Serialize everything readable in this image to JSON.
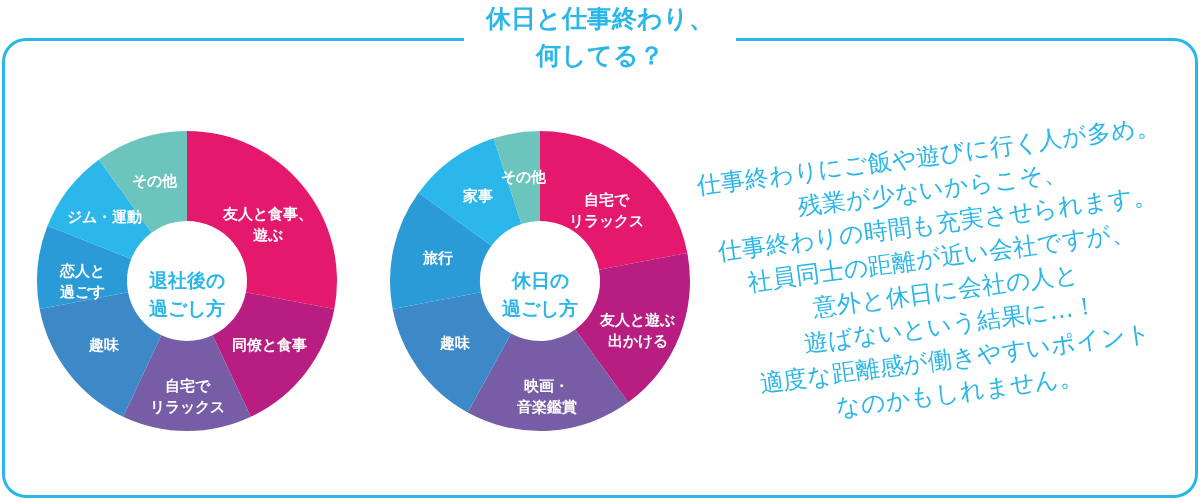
{
  "chart_data": [
    {
      "type": "other",
      "title": "休日と仕事終わり、何してる？"
    },
    {
      "type": "donut",
      "title": "退社後の過ごし方",
      "categories": [
        "友人と食事、遊ぶ",
        "同僚と食事",
        "自宅でリラックス",
        "趣味",
        "恋人と過ごす",
        "ジム・運動",
        "その他"
      ],
      "values": [
        28,
        15,
        14,
        15,
        9,
        9,
        10
      ],
      "colors": [
        "#e4186d",
        "#b81e82",
        "#765da5",
        "#3d89c8",
        "#2a9bd7",
        "#2bb7ea",
        "#6cc5bc"
      ]
    },
    {
      "type": "donut",
      "title": "休日の過ごし方",
      "categories": [
        "自宅でリラックス",
        "友人と遊ぶ出かける",
        "映画・音楽鑑賞",
        "趣味",
        "旅行",
        "家事",
        "その他"
      ],
      "values": [
        22,
        18,
        18,
        14,
        13,
        10,
        5
      ],
      "colors": [
        "#e4186d",
        "#b81e82",
        "#765da5",
        "#3d89c8",
        "#2a9bd7",
        "#2bb7ea",
        "#6cc5bc"
      ]
    },
    {
      "type": "other",
      "annotations": [
        "仕事終わりにご飯や遊びに行く人が多め。",
        "残業が少ないからこそ、",
        "仕事終わりの時間も充実させられます。",
        "社員同士の距離が近い会社ですが、",
        "意外と休日に会社の人と",
        "遊ばないという結果に…！",
        "適度な距離感が働きやすいポイント",
        "なのかもしれません。"
      ]
    }
  ]
}
